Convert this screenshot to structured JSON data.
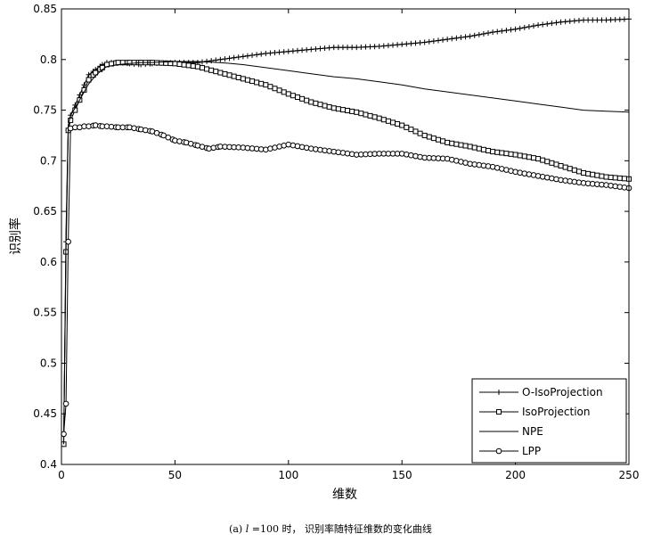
{
  "chart_data": {
    "type": "line",
    "ylabel": "识别率",
    "xlabel": "维数",
    "xlim": [
      0,
      250
    ],
    "ylim": [
      0.4,
      0.85
    ],
    "xticks": [
      0,
      50,
      100,
      150,
      200,
      250
    ],
    "xtick_labels": [
      "0",
      "50",
      "100",
      "150",
      "200",
      "250"
    ],
    "yticks": [
      0.4,
      0.45,
      0.5,
      0.55,
      0.6,
      0.65,
      0.7,
      0.75,
      0.8,
      0.85
    ],
    "ytick_labels": [
      "0.4",
      "0.45",
      "0.5",
      "0.55",
      "0.6",
      "0.65",
      "0.7",
      "0.75",
      "0.8",
      "0.85"
    ],
    "grid": false,
    "legend_position": "bottom-right",
    "series": [
      {
        "name": "O-IsoProjection",
        "marker": "plus",
        "color": "#000000",
        "x": [
          1,
          2,
          3,
          4,
          6,
          8,
          10,
          12,
          15,
          18,
          20,
          25,
          30,
          35,
          40,
          50,
          60,
          70,
          80,
          90,
          100,
          110,
          120,
          130,
          140,
          150,
          160,
          170,
          180,
          190,
          200,
          210,
          220,
          230,
          240,
          250
        ],
        "y": [
          0.42,
          0.62,
          0.73,
          0.745,
          0.755,
          0.765,
          0.775,
          0.785,
          0.79,
          0.795,
          0.797,
          0.797,
          0.796,
          0.795,
          0.796,
          0.797,
          0.797,
          0.8,
          0.803,
          0.806,
          0.808,
          0.81,
          0.812,
          0.812,
          0.813,
          0.815,
          0.817,
          0.82,
          0.823,
          0.827,
          0.83,
          0.834,
          0.837,
          0.839,
          0.839,
          0.84
        ]
      },
      {
        "name": "IsoProjection",
        "marker": "square",
        "color": "#000000",
        "x": [
          1,
          2,
          3,
          4,
          6,
          8,
          10,
          12,
          15,
          18,
          20,
          25,
          30,
          35,
          40,
          50,
          60,
          70,
          80,
          90,
          100,
          110,
          120,
          130,
          140,
          150,
          160,
          170,
          180,
          190,
          200,
          210,
          220,
          230,
          240,
          250
        ],
        "y": [
          0.42,
          0.61,
          0.73,
          0.74,
          0.75,
          0.76,
          0.77,
          0.78,
          0.787,
          0.792,
          0.795,
          0.797,
          0.797,
          0.797,
          0.797,
          0.796,
          0.793,
          0.787,
          0.781,
          0.775,
          0.766,
          0.758,
          0.752,
          0.748,
          0.742,
          0.735,
          0.725,
          0.718,
          0.714,
          0.709,
          0.706,
          0.702,
          0.695,
          0.688,
          0.684,
          0.682
        ]
      },
      {
        "name": "NPE",
        "marker": "none",
        "color": "#000000",
        "x": [
          1,
          2,
          3,
          4,
          6,
          8,
          10,
          12,
          15,
          18,
          20,
          25,
          30,
          35,
          40,
          50,
          60,
          70,
          80,
          90,
          100,
          110,
          120,
          130,
          140,
          150,
          160,
          170,
          180,
          190,
          200,
          210,
          220,
          230,
          240,
          250
        ],
        "y": [
          0.42,
          0.63,
          0.735,
          0.745,
          0.752,
          0.76,
          0.768,
          0.776,
          0.784,
          0.79,
          0.793,
          0.795,
          0.796,
          0.797,
          0.797,
          0.798,
          0.798,
          0.797,
          0.795,
          0.792,
          0.789,
          0.786,
          0.783,
          0.781,
          0.778,
          0.775,
          0.771,
          0.768,
          0.765,
          0.762,
          0.759,
          0.756,
          0.753,
          0.75,
          0.749,
          0.748
        ]
      },
      {
        "name": "LPP",
        "marker": "circle",
        "color": "#000000",
        "x": [
          1,
          2,
          3,
          4,
          6,
          8,
          10,
          12,
          15,
          18,
          20,
          25,
          30,
          35,
          40,
          45,
          50,
          55,
          60,
          65,
          70,
          80,
          90,
          100,
          110,
          120,
          130,
          140,
          150,
          160,
          170,
          180,
          190,
          200,
          210,
          220,
          230,
          240,
          250
        ],
        "y": [
          0.43,
          0.46,
          0.62,
          0.732,
          0.733,
          0.733,
          0.734,
          0.734,
          0.735,
          0.734,
          0.734,
          0.733,
          0.733,
          0.731,
          0.729,
          0.725,
          0.72,
          0.718,
          0.715,
          0.712,
          0.714,
          0.713,
          0.711,
          0.716,
          0.712,
          0.709,
          0.706,
          0.707,
          0.707,
          0.703,
          0.702,
          0.697,
          0.694,
          0.689,
          0.685,
          0.681,
          0.678,
          0.676,
          0.673
        ]
      }
    ]
  },
  "caption": {
    "prefix": "(a) ",
    "var": "l",
    "text": " =100 时， 识别率随特征维数的变化曲线"
  }
}
